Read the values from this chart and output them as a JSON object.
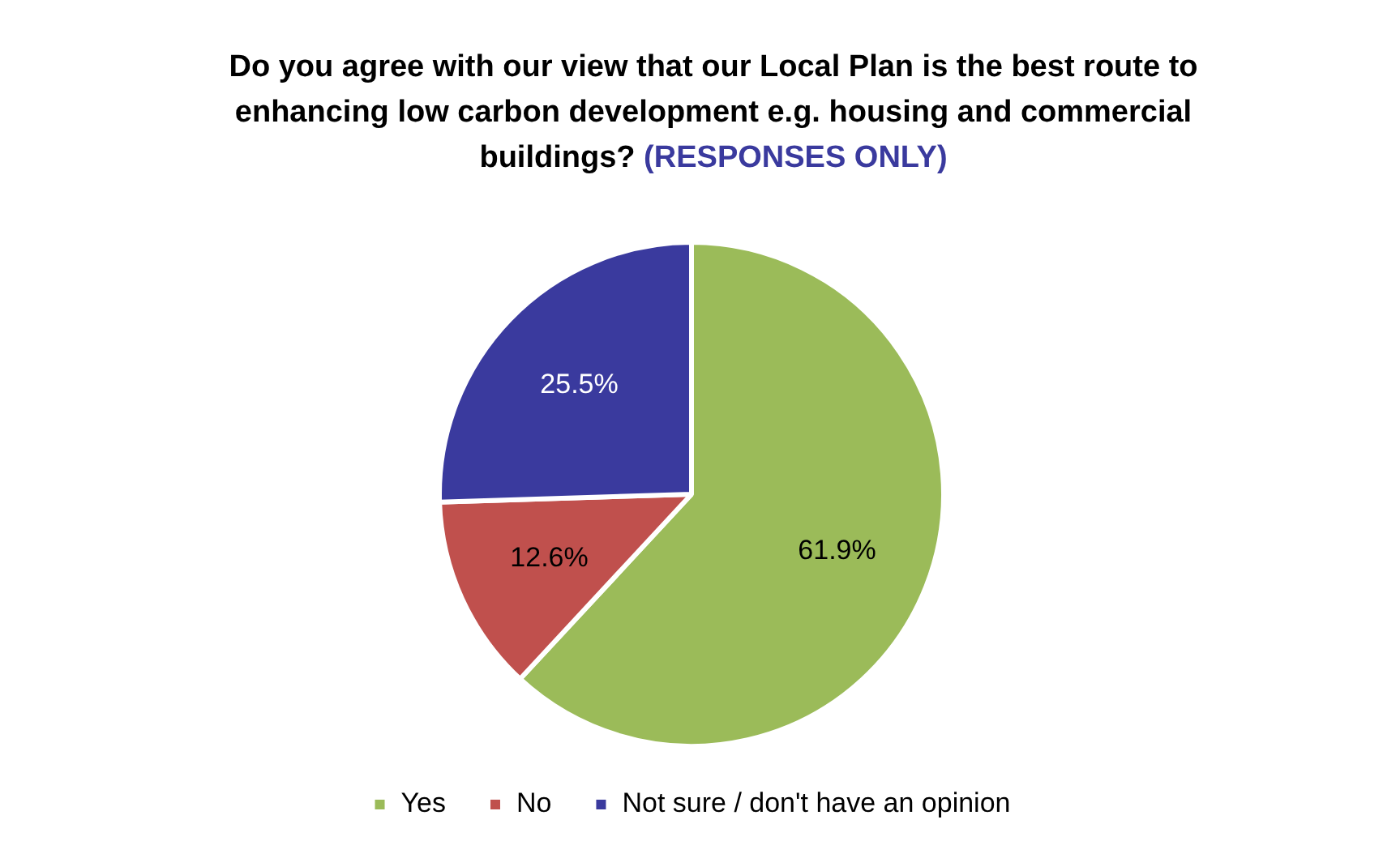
{
  "chart_data": {
    "type": "pie",
    "title": "Do you agree with our view that our Local Plan is the best route to enhancing low carbon development e.g. housing and commercial buildings?",
    "subtitle": "(RESPONSES ONLY)",
    "categories": [
      "Yes",
      "No",
      "Not sure / don't have an opinion"
    ],
    "values": [
      61.9,
      12.6,
      25.5
    ],
    "colors": [
      "#9bbb59",
      "#c0504d",
      "#3a3a9e"
    ],
    "value_labels": [
      "61.9%",
      "12.6%",
      "25.5%"
    ],
    "legend": "bottom"
  }
}
